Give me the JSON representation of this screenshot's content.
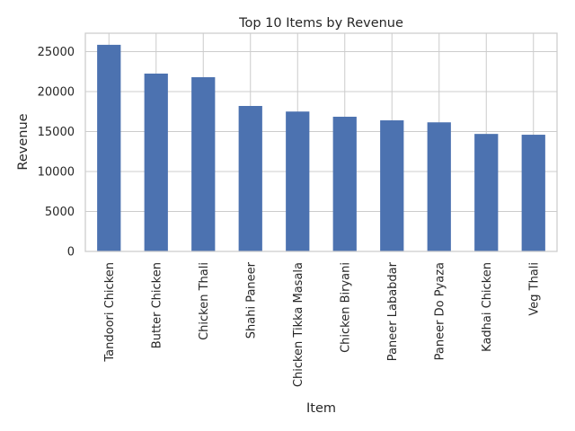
{
  "chart_data": {
    "type": "bar",
    "title": "Top 10 Items by Revenue",
    "xlabel": "Item",
    "ylabel": "Revenue",
    "categories": [
      "Tandoori Chicken",
      "Butter Chicken",
      "Chicken Thali",
      "Shahi Paneer",
      "Chicken Tikka Masala",
      "Chicken Biryani",
      "Paneer Lababdar",
      "Paneer Do Pyaza",
      "Kadhai Chicken",
      "Veg Thali"
    ],
    "values": [
      25850,
      22250,
      21800,
      18200,
      17500,
      16850,
      16400,
      16150,
      14700,
      14600
    ],
    "ylim": [
      0,
      27300
    ],
    "yticks": [
      0,
      5000,
      10000,
      15000,
      20000,
      25000
    ],
    "grid": true,
    "legend": "none",
    "bar_color": "#4c72b0"
  }
}
